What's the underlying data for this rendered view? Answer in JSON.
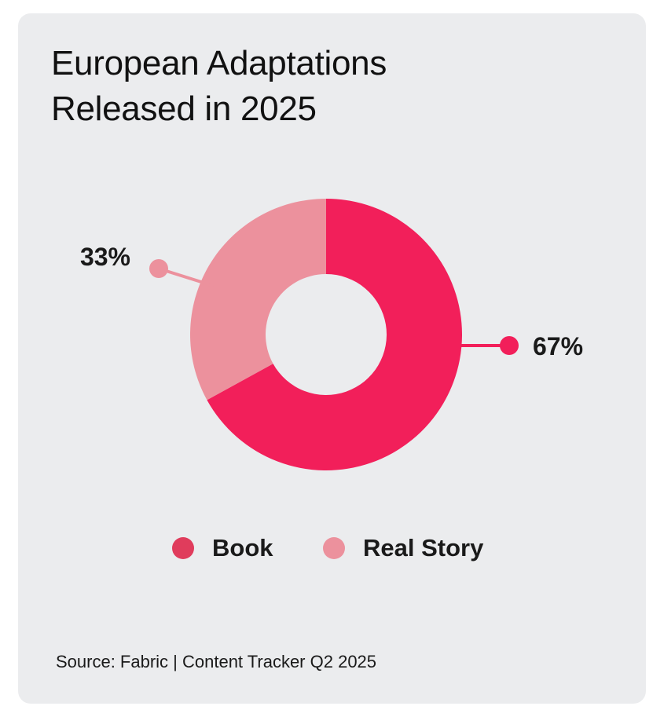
{
  "chart_data": {
    "type": "pie",
    "title_lines": [
      "European Adaptations",
      "Released in 2025"
    ],
    "slices": [
      {
        "name": "Book",
        "value": 67,
        "label": "67%",
        "color": "#f21f5a",
        "legend_color": "#e03c5c"
      },
      {
        "name": "Real Story",
        "value": 33,
        "label": "33%",
        "color": "#ec919d",
        "legend_color": "#ec919d"
      }
    ],
    "legend": [
      "Book",
      "Real Story"
    ],
    "legend_position": "bottom",
    "donut": true
  },
  "source": "Source: Fabric | Content Tracker Q2 2025"
}
